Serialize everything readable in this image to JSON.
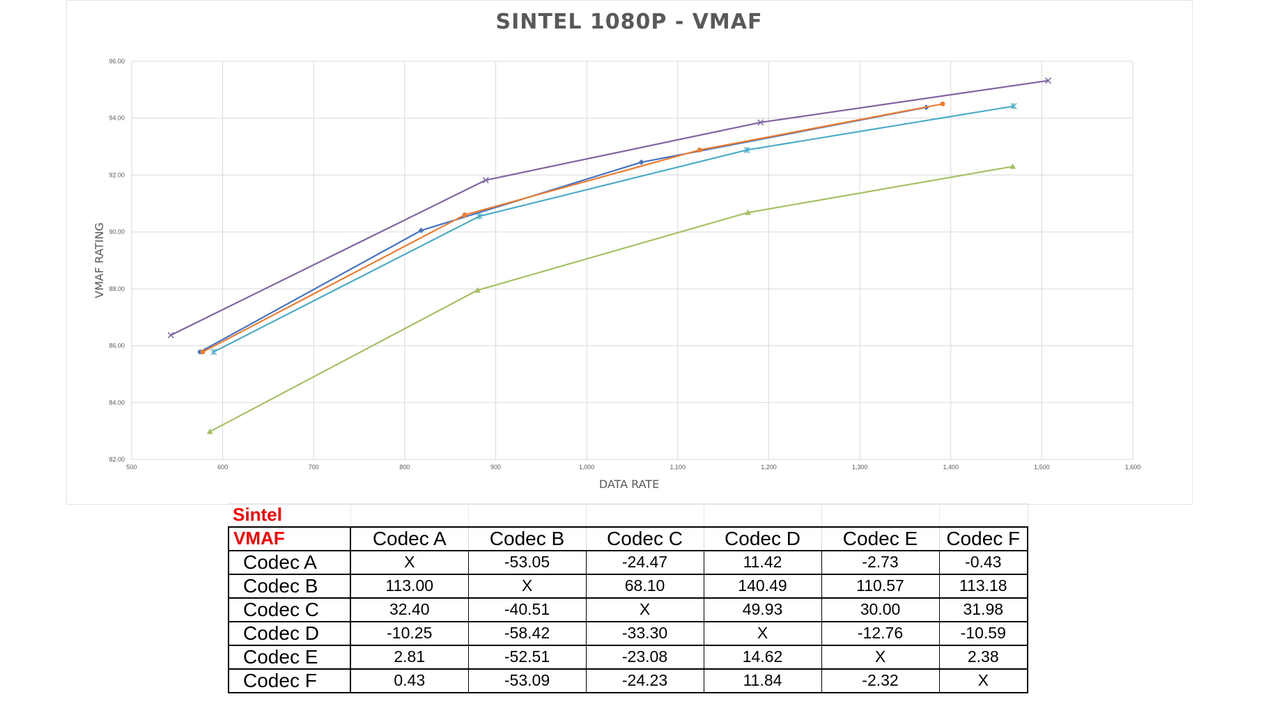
{
  "chart_data": {
    "type": "line",
    "title": "SINTEL 1080P - VMAF",
    "xlabel": "DATA RATE",
    "ylabel": "VMAF RATING",
    "xlim": [
      500,
      1600
    ],
    "ylim": [
      82,
      96
    ],
    "x_ticks": [
      500,
      600,
      700,
      800,
      900,
      1000,
      1100,
      1200,
      1300,
      1400,
      1500,
      1600
    ],
    "x_tick_labels": [
      "500",
      "600",
      "700",
      "800",
      "900",
      "1,000",
      "1,100",
      "1,200",
      "1,300",
      "1,400",
      "1,500",
      "1,600"
    ],
    "y_ticks": [
      82,
      84,
      86,
      88,
      90,
      92,
      94,
      96
    ],
    "y_tick_labels": [
      "82.00",
      "84.00",
      "86.00",
      "88.00",
      "90.00",
      "92.00",
      "94.00",
      "96.00"
    ],
    "grid": true,
    "legend": "none",
    "series": [
      {
        "color": "#4472c4",
        "marker": "diamond",
        "x": [
          575,
          818,
          1060,
          1373
        ],
        "y": [
          85.78,
          90.05,
          92.45,
          94.38
        ]
      },
      {
        "color": "#ed7d31",
        "marker": "circle",
        "x": [
          578,
          866,
          1124,
          1391
        ],
        "y": [
          85.78,
          90.6,
          92.88,
          94.5
        ]
      },
      {
        "color": "#a5c163",
        "marker": "triangle",
        "x": [
          586,
          880,
          1177,
          1468
        ],
        "y": [
          82.98,
          87.95,
          90.68,
          92.3
        ]
      },
      {
        "color": "#8064a2",
        "marker": "x",
        "x": [
          543,
          889,
          1191,
          1507
        ],
        "y": [
          86.37,
          91.82,
          93.85,
          95.32
        ]
      },
      {
        "color": "#4bacc6",
        "marker": "star",
        "x": [
          590,
          882,
          1176,
          1469
        ],
        "y": [
          85.78,
          90.55,
          92.88,
          94.42
        ]
      }
    ]
  },
  "table": {
    "caption": "Sintel",
    "corner": "VMAF",
    "columns": [
      "Codec A",
      "Codec B",
      "Codec C",
      "Codec D",
      "Codec E",
      "Codec F"
    ],
    "rows": [
      {
        "label": "Codec A",
        "cells": [
          "X",
          "-53.05",
          "-24.47",
          "11.42",
          "-2.73",
          "-0.43"
        ]
      },
      {
        "label": "Codec B",
        "cells": [
          "113.00",
          "X",
          "68.10",
          "140.49",
          "110.57",
          "113.18"
        ]
      },
      {
        "label": "Codec C",
        "cells": [
          "32.40",
          "-40.51",
          "X",
          "49.93",
          "30.00",
          "31.98"
        ]
      },
      {
        "label": "Codec D",
        "cells": [
          "-10.25",
          "-58.42",
          "-33.30",
          "X",
          "-12.76",
          "-10.59"
        ]
      },
      {
        "label": "Codec E",
        "cells": [
          "2.81",
          "-52.51",
          "-23.08",
          "14.62",
          "X",
          "2.38"
        ]
      },
      {
        "label": "Codec F",
        "cells": [
          "0.43",
          "-53.09",
          "-24.23",
          "11.84",
          "-2.32",
          "X"
        ]
      }
    ]
  },
  "colors": {
    "title_text": "#595959",
    "gridline": "#d9d9d9",
    "table_red": "#ff0000"
  }
}
